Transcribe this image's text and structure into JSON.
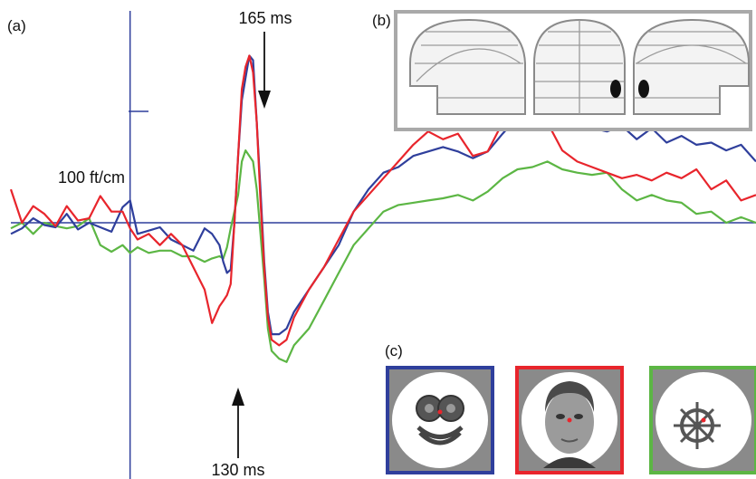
{
  "panels": {
    "a": "(a)",
    "b": "(b)",
    "c": "(c)"
  },
  "annotations": {
    "peak_top": "165 ms",
    "peak_bottom": "130 ms",
    "scale": "100 ft/cm"
  },
  "colors": {
    "blue": "#2f3f9c",
    "red": "#e8252c",
    "green": "#5cb644",
    "axis": "#2f3f9c",
    "frame_gray": "#a9a9a9"
  },
  "stimuli": [
    {
      "name": "cartoon-face",
      "frame": "blue"
    },
    {
      "name": "photo-face",
      "frame": "red"
    },
    {
      "name": "ship-wheel",
      "frame": "green"
    }
  ],
  "chart_data": {
    "type": "line",
    "xlabel": "",
    "ylabel": "",
    "xlim": [
      -160,
      840
    ],
    "ylim": [
      -230,
      200
    ],
    "grid": false,
    "series": [
      {
        "color": "blue",
        "x": [
          -160,
          -145,
          -130,
          -115,
          -100,
          -85,
          -70,
          -55,
          -40,
          -25,
          -10,
          0,
          10,
          25,
          40,
          55,
          70,
          85,
          100,
          110,
          120,
          125,
          130,
          135,
          140,
          145,
          150,
          155,
          160,
          165,
          170,
          175,
          180,
          185,
          190,
          200,
          210,
          220,
          240,
          260,
          280,
          300,
          320,
          340,
          360,
          380,
          400,
          420,
          440,
          460,
          480,
          500,
          520,
          540,
          560,
          580,
          600,
          620,
          640,
          660,
          680,
          700,
          720,
          740,
          760,
          780,
          800,
          820,
          840
        ],
        "y": [
          -10,
          -5,
          4,
          -2,
          -4,
          8,
          -6,
          0,
          -4,
          -8,
          14,
          20,
          -10,
          -7,
          -4,
          -15,
          -20,
          -25,
          -5,
          -10,
          -20,
          -35,
          -45,
          -42,
          0,
          60,
          110,
          130,
          150,
          146,
          90,
          30,
          -35,
          -80,
          -100,
          -100,
          -95,
          -80,
          -60,
          -40,
          -20,
          10,
          30,
          45,
          50,
          60,
          64,
          68,
          64,
          58,
          64,
          80,
          95,
          100,
          86,
          83,
          88,
          85,
          82,
          87,
          75,
          85,
          72,
          78,
          70,
          72,
          65,
          70,
          55
        ]
      },
      {
        "color": "red",
        "x": [
          -160,
          -145,
          -130,
          -115,
          -100,
          -85,
          -70,
          -55,
          -40,
          -25,
          -10,
          0,
          10,
          25,
          40,
          55,
          70,
          85,
          100,
          110,
          120,
          125,
          130,
          135,
          140,
          145,
          150,
          155,
          160,
          165,
          170,
          175,
          180,
          185,
          190,
          200,
          210,
          220,
          240,
          260,
          280,
          300,
          320,
          340,
          360,
          380,
          400,
          420,
          440,
          460,
          480,
          500,
          520,
          540,
          560,
          580,
          600,
          620,
          640,
          660,
          680,
          700,
          720,
          740,
          760,
          780,
          800,
          820,
          840
        ],
        "y": [
          30,
          0,
          15,
          8,
          -3,
          15,
          2,
          4,
          24,
          10,
          10,
          -5,
          -15,
          -10,
          -20,
          -10,
          -20,
          -40,
          -60,
          -90,
          -75,
          -70,
          -65,
          -55,
          0,
          60,
          120,
          140,
          150,
          135,
          90,
          20,
          -40,
          -85,
          -105,
          -110,
          -105,
          -85,
          -60,
          -40,
          -15,
          10,
          25,
          40,
          55,
          70,
          82,
          75,
          80,
          60,
          64,
          90,
          120,
          110,
          90,
          65,
          55,
          50,
          45,
          40,
          43,
          38,
          45,
          40,
          48,
          30,
          38,
          20,
          25
        ]
      },
      {
        "color": "green",
        "x": [
          -160,
          -145,
          -130,
          -115,
          -100,
          -85,
          -70,
          -55,
          -40,
          -25,
          -10,
          0,
          10,
          25,
          40,
          55,
          70,
          85,
          100,
          110,
          120,
          125,
          130,
          135,
          140,
          145,
          150,
          155,
          160,
          165,
          170,
          175,
          180,
          185,
          190,
          200,
          210,
          220,
          240,
          260,
          280,
          300,
          320,
          340,
          360,
          380,
          400,
          420,
          440,
          460,
          480,
          500,
          520,
          540,
          560,
          580,
          600,
          620,
          640,
          660,
          680,
          700,
          720,
          740,
          760,
          780,
          800,
          820,
          840
        ],
        "y": [
          -5,
          0,
          -10,
          0,
          -3,
          -5,
          -3,
          4,
          -20,
          -26,
          -20,
          -27,
          -22,
          -27,
          -25,
          -25,
          -30,
          -30,
          -35,
          -32,
          -30,
          -32,
          -22,
          -5,
          10,
          25,
          55,
          65,
          60,
          55,
          30,
          -10,
          -50,
          -95,
          -115,
          -122,
          -125,
          -110,
          -95,
          -70,
          -45,
          -20,
          -5,
          10,
          16,
          18,
          20,
          22,
          25,
          20,
          28,
          40,
          48,
          50,
          55,
          48,
          45,
          43,
          45,
          30,
          20,
          25,
          20,
          18,
          8,
          10,
          0,
          5,
          0
        ]
      }
    ],
    "annotation_points": [
      {
        "label": "165 ms",
        "x": 165
      },
      {
        "label": "130 ms",
        "x": 130
      }
    ],
    "scale_bar": {
      "label": "100 ft/cm",
      "value": 100
    }
  }
}
